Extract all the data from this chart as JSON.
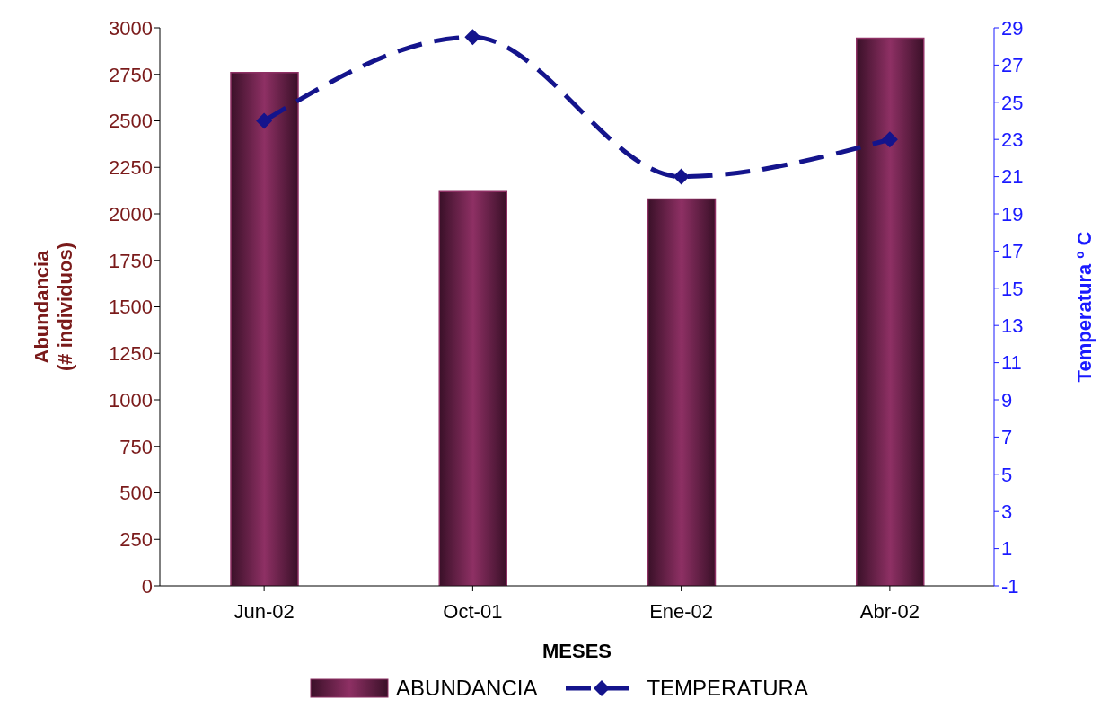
{
  "chart_data": {
    "type": "bar",
    "categories": [
      "Jun-02",
      "Oct-01",
      "Ene-02",
      "Abr-02"
    ],
    "series": [
      {
        "name": "ABUNDANCIA",
        "color": "#8e3064",
        "values": [
          2760,
          2120,
          2080,
          2945
        ]
      },
      {
        "name": "TEMPERATURA",
        "type": "line",
        "axis": "y2",
        "color": "#14148c",
        "values": [
          24,
          28.5,
          21,
          23
        ],
        "marker": "diamond",
        "line_style": "dashed"
      }
    ],
    "xlabel": "MESES",
    "ylabel": "Abundancia (# individuos)",
    "y2label": "Temperatura º C",
    "ylim": [
      0,
      3000
    ],
    "yticks": [
      0,
      250,
      500,
      750,
      1000,
      1250,
      1500,
      1750,
      2000,
      2250,
      2500,
      2750,
      3000
    ],
    "y2lim": [
      -1,
      29
    ],
    "y2ticks": [
      -1,
      1,
      3,
      5,
      7,
      9,
      11,
      13,
      15,
      17,
      19,
      21,
      23,
      25,
      27,
      29
    ],
    "legend": "bottom"
  }
}
